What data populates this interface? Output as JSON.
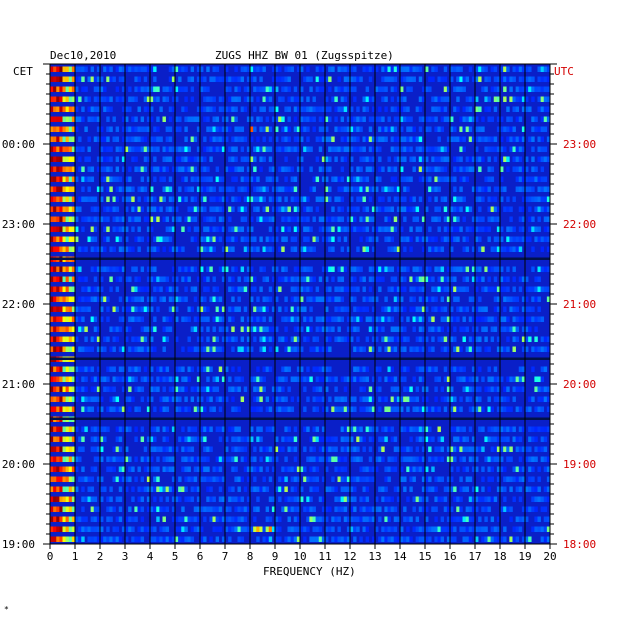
{
  "header": {
    "date": "Dec10,2010",
    "station": "ZUGS HHZ BW 01 (Zugsspitze)"
  },
  "axes": {
    "left_label": "CET",
    "right_label": "UTC",
    "x_label": "FREQUENCY (HZ)"
  },
  "colors": {
    "background_blue": "#0a1fc8",
    "grid_line": "#000000",
    "utc_text": "#d40000"
  },
  "chart_data": {
    "type": "heatmap",
    "title": "ZUGS HHZ BW 01 (Zugsspitze)",
    "date": "Dec10,2010",
    "xlabel": "FREQUENCY (HZ)",
    "xlim": [
      0,
      20
    ],
    "x_ticks": [
      "0",
      "1",
      "2",
      "3",
      "4",
      "5",
      "6",
      "7",
      "8",
      "9",
      "10",
      "11",
      "12",
      "13",
      "14",
      "15",
      "16",
      "17",
      "18",
      "19",
      "20"
    ],
    "y_left_label": "CET",
    "y_left_ticks": [
      "19:00",
      "20:00",
      "21:00",
      "22:00",
      "23:00",
      "00:00"
    ],
    "y_right_label": "UTC",
    "y_right_ticks": [
      "18:00",
      "19:00",
      "20:00",
      "21:00",
      "22:00",
      "23:00"
    ],
    "grid": true,
    "colormap": "jet",
    "rows": 48,
    "noise_band_hz": [
      0,
      1
    ],
    "dark_gap_rows": [
      19,
      29,
      35
    ],
    "bright_row_features": [
      {
        "row": 29,
        "hz_range": [
          0,
          10
        ],
        "note": "bright banded line"
      },
      {
        "row": 6,
        "hz_range": [
          8,
          9
        ],
        "note": "bright spot"
      },
      {
        "row": 46,
        "hz_range": [
          8,
          9
        ],
        "note": "bright spot"
      }
    ]
  }
}
